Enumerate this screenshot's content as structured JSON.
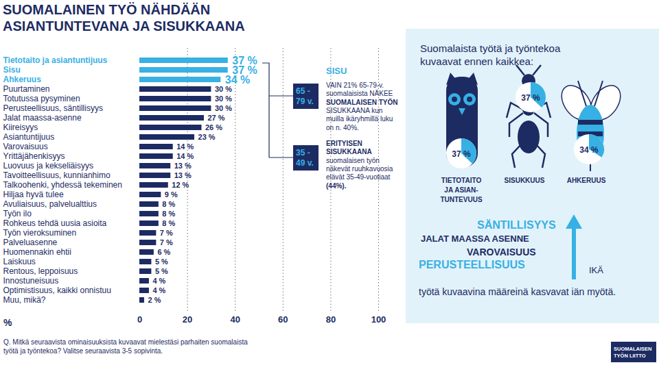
{
  "chart_data": {
    "type": "bar",
    "orientation": "horizontal",
    "title": [
      "SUOMALAINEN TYÖ NÄHDÄÄN",
      "ASIANTUNTEVANA JA SISUKKAANA"
    ],
    "categories": [
      "Tietotaito ja asiantuntijuus",
      "Sisu",
      "Ahkeruus",
      "Puurtaminen",
      "Totutussa pysyminen",
      "Perusteellisuus, säntillisyys",
      "Jalat maassa-asenne",
      "Kiireisyys",
      "Asiantuntijuus",
      "Varovaisuus",
      "Yrittäjähenkisyys",
      "Luovuus ja kekseliäisyys",
      "Tavoitteellisuus, kunnianhimo",
      "Talkoohenki, yhdessä tekeminen",
      "Hiljaa hyvä tulee",
      "Avuliaisuus, palvelualttius",
      "Työn ilo",
      "Rohkeus tehdä uusia asioita",
      "Työn vieroksuminen",
      "Palveluasenne",
      "Huomennakin ehtii",
      "Laiskuus",
      "Rentous, leppoisuus",
      "Innostuneisuus",
      "Optimistisuus, kaikki onnistuu",
      "Muu, mikä?"
    ],
    "values": [
      37,
      37,
      34,
      30,
      30,
      30,
      27,
      26,
      23,
      14,
      14,
      13,
      13,
      12,
      9,
      8,
      8,
      8,
      7,
      7,
      6,
      5,
      5,
      4,
      4,
      2
    ],
    "value_labels": [
      "37 %",
      "37 %",
      "34 %",
      "30 %",
      "30 %",
      "30 %",
      "27 %",
      "26 %",
      "23 %",
      "14 %",
      "14 %",
      "13 %",
      "13 %",
      "12 %",
      "9 %",
      "8 %",
      "8 %",
      "8 %",
      "7 %",
      "7 %",
      "6 %",
      "5 %",
      "5 %",
      "4 %",
      "4 %",
      "2 %"
    ],
    "colors": [
      "#37b0e4",
      "#37b0e4",
      "#37b0e4",
      "#1d2b63",
      "#1d2b63",
      "#1d2b63",
      "#1d2b63",
      "#1d2b63",
      "#1d2b63",
      "#1d2b63",
      "#1d2b63",
      "#1d2b63",
      "#1d2b63",
      "#1d2b63",
      "#1d2b63",
      "#1d2b63",
      "#1d2b63",
      "#1d2b63",
      "#1d2b63",
      "#1d2b63",
      "#1d2b63",
      "#1d2b63",
      "#1d2b63",
      "#1d2b63",
      "#1d2b63",
      "#1d2b63"
    ],
    "data_labels": true,
    "xlim": [
      0,
      100
    ],
    "xticks": [
      0,
      20,
      40,
      60,
      80,
      100
    ],
    "grid": true,
    "x_label": "%",
    "annotations": {
      "sisu": {
        "heading": "SISU",
        "age_group": [
          "65 -",
          "79 v."
        ],
        "lines": [
          "VAIN 21% 65-79-v.",
          "suomalaisista NÄKEE",
          "SUOMALAISEN TYÖN",
          "SISUKKAANA kun",
          "muilla ikäryhmillä luku",
          "on n. 40%."
        ]
      },
      "rush_years": {
        "age_group": [
          "35 -",
          "49 v."
        ],
        "lines": [
          "ERITYISEN",
          "SISUKKAANA",
          "suomalaisen työn",
          "näkevät ruuhkavuosia",
          "elävät 35-49-vuotiaat",
          "(44%)."
        ]
      },
      "panel": {
        "title": [
          "Suomalaista työtä ja työntekoa",
          "kuvaavat ennen kaikkea:"
        ],
        "highlights": [
          {
            "label": [
              "TIETOTAITO",
              "JA ASIAN-",
              "TUNTEVUUS"
            ],
            "value": 37,
            "value_label": "37 %"
          },
          {
            "label": [
              "SISUKKUUS"
            ],
            "value": 37,
            "value_label": "37 %"
          },
          {
            "label": [
              "AHKERUUS"
            ],
            "value": 34,
            "value_label": "34 %"
          }
        ],
        "rising": [
          "SÄNTILLISYYS",
          "JALAT MAASSA ASENNE",
          "VAROVAISUUS",
          "PERUSTEELLISUUS"
        ],
        "arrow_label": "IKÄ",
        "note": "työtä kuvaavina määreinä kasvavat iän myötä."
      }
    },
    "caption": [
      "Q. Mitkä seuraavista ominaisuuksista kuvaavat mielestäsi parhaiten suomalaista",
      "työtä ja työntekoa? Valitse seuraavista 3-5 sopivinta."
    ],
    "logo": [
      "SUOMALAISEN",
      "TYÖN LIITTO"
    ]
  }
}
